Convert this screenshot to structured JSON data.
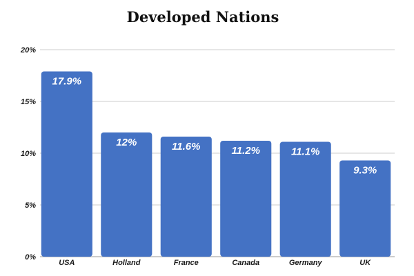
{
  "chart_data": {
    "type": "bar",
    "title": "Developed Nations",
    "categories": [
      "USA",
      "Holland",
      "France",
      "Canada",
      "Germany",
      "UK"
    ],
    "values": [
      17.9,
      12,
      11.6,
      11.2,
      11.1,
      9.3
    ],
    "data_labels": [
      "17.9%",
      "12%",
      "11.6%",
      "11.2%",
      "11.1%",
      "9.3%"
    ],
    "xlabel": "",
    "ylabel": "",
    "ylim": [
      0,
      20
    ],
    "yticks": [
      0,
      5,
      10,
      15,
      20
    ],
    "ytick_labels": [
      "0%",
      "5%",
      "10%",
      "15%",
      "20%"
    ],
    "grid": true,
    "legend": "none",
    "bar_color": "#4472c4"
  }
}
